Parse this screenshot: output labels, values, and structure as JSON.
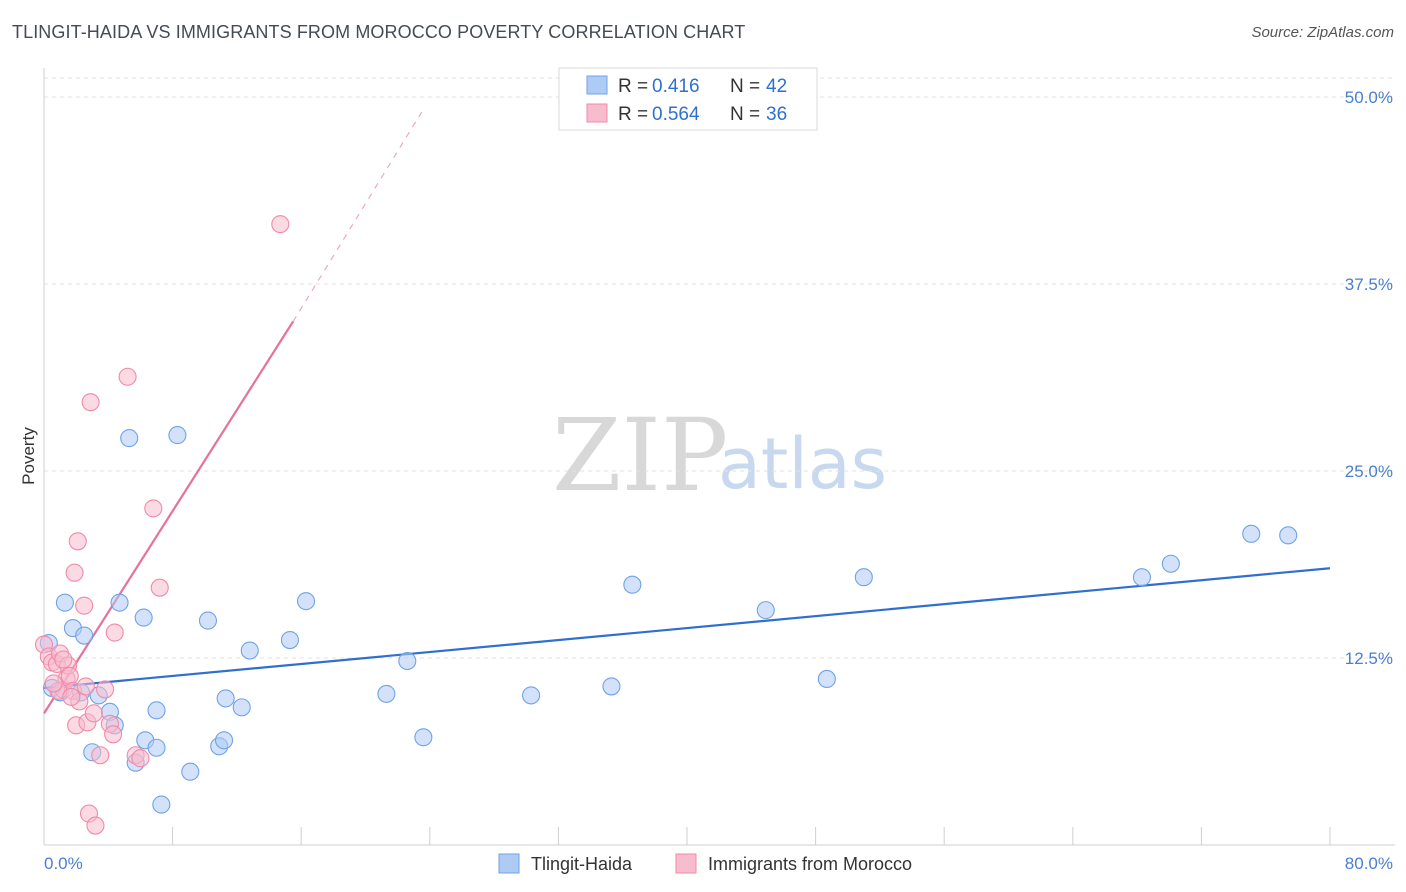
{
  "header": {
    "title": "TLINGIT-HAIDA VS IMMIGRANTS FROM MOROCCO POVERTY CORRELATION CHART",
    "source": "Source: ZipAtlas.com"
  },
  "watermark": {
    "zip": "ZIP",
    "atlas": "atlas"
  },
  "legend": {
    "items": [
      {
        "r_label": "R =",
        "r_value": "0.416",
        "n_label": "N =",
        "n_value": "42",
        "color": "#aecbf5"
      },
      {
        "r_label": "R =",
        "r_value": "0.564",
        "n_label": "N =",
        "n_value": "36",
        "color": "#f7bccd"
      }
    ]
  },
  "bottom_legend": [
    {
      "label": "Tlingit-Haida",
      "color": "#aecbf5"
    },
    {
      "label": "Immigrants from Morocco",
      "color": "#f7bccd"
    }
  ],
  "chart_data": {
    "type": "scatter",
    "title": "TLINGIT-HAIDA VS IMMIGRANTS FROM MOROCCO POVERTY CORRELATION CHART",
    "xlabel": "",
    "ylabel": "Poverty",
    "xlim": [
      0,
      80
    ],
    "ylim": [
      0,
      50
    ],
    "y_ticks": [
      12.5,
      25.0,
      37.5,
      50.0
    ],
    "y_tick_labels": [
      "12.5%",
      "25.0%",
      "37.5%",
      "50.0%"
    ],
    "x_tick_labels": [
      "0.0%",
      "80.0%"
    ],
    "series": [
      {
        "name": "Tlingit-Haida",
        "color": "#6ea3e6",
        "fill": "#aecbf5",
        "trend": {
          "x0": 0,
          "y0": 10.5,
          "x1": 80,
          "y1": 18.5,
          "color": "#2f6fd0"
        },
        "points": [
          [
            0.3,
            13.5
          ],
          [
            0.5,
            10.5
          ],
          [
            1.0,
            10.2
          ],
          [
            1.3,
            16.2
          ],
          [
            1.8,
            14.5
          ],
          [
            2.5,
            14.0
          ],
          [
            2.3,
            10.2
          ],
          [
            3.0,
            6.2
          ],
          [
            3.4,
            10.0
          ],
          [
            4.1,
            8.9
          ],
          [
            4.4,
            8.0
          ],
          [
            4.7,
            16.2
          ],
          [
            5.3,
            27.2
          ],
          [
            5.7,
            5.5
          ],
          [
            6.2,
            15.2
          ],
          [
            6.3,
            7.0
          ],
          [
            7.0,
            6.5
          ],
          [
            7.0,
            9.0
          ],
          [
            8.3,
            27.4
          ],
          [
            9.1,
            4.9
          ],
          [
            10.2,
            15.0
          ],
          [
            10.9,
            6.6
          ],
          [
            11.2,
            7.0
          ],
          [
            11.3,
            9.8
          ],
          [
            12.3,
            9.2
          ],
          [
            12.8,
            13.0
          ],
          [
            15.3,
            13.7
          ],
          [
            16.3,
            16.3
          ],
          [
            21.3,
            10.1
          ],
          [
            22.6,
            12.3
          ],
          [
            23.6,
            7.2
          ],
          [
            30.3,
            10.0
          ],
          [
            35.3,
            10.6
          ],
          [
            36.6,
            17.4
          ],
          [
            44.9,
            15.7
          ],
          [
            48.7,
            11.1
          ],
          [
            51.0,
            17.9
          ],
          [
            68.3,
            17.9
          ],
          [
            70.1,
            18.8
          ],
          [
            75.1,
            20.8
          ],
          [
            77.4,
            20.7
          ],
          [
            7.3,
            2.7
          ]
        ]
      },
      {
        "name": "Immigrants from Morocco",
        "color": "#f08aa9",
        "fill": "#f7bccd",
        "trend": {
          "x0": 0,
          "y0": 8.8,
          "x1": 15.5,
          "y1": 35.0,
          "color": "#e8719a"
        },
        "trend_dashed": {
          "x0": 15.5,
          "y0": 35.0,
          "x1": 23.5,
          "y1": 49.0,
          "color": "#f0a6bf"
        },
        "points": [
          [
            0.0,
            13.4
          ],
          [
            0.3,
            12.6
          ],
          [
            0.5,
            12.2
          ],
          [
            0.8,
            12.1
          ],
          [
            1.0,
            12.8
          ],
          [
            1.2,
            10.4
          ],
          [
            1.4,
            11.1
          ],
          [
            1.5,
            12.0
          ],
          [
            1.6,
            11.3
          ],
          [
            1.8,
            10.3
          ],
          [
            1.9,
            18.2
          ],
          [
            2.0,
            8.0
          ],
          [
            2.1,
            20.3
          ],
          [
            2.2,
            9.6
          ],
          [
            2.5,
            16.0
          ],
          [
            2.6,
            10.6
          ],
          [
            2.7,
            8.2
          ],
          [
            2.8,
            2.1
          ],
          [
            2.9,
            29.6
          ],
          [
            3.1,
            8.8
          ],
          [
            3.2,
            1.3
          ],
          [
            3.5,
            6.0
          ],
          [
            3.8,
            10.4
          ],
          [
            4.1,
            8.1
          ],
          [
            4.3,
            7.4
          ],
          [
            4.4,
            14.2
          ],
          [
            5.2,
            31.3
          ],
          [
            5.7,
            6.0
          ],
          [
            6.0,
            5.8
          ],
          [
            6.8,
            22.5
          ],
          [
            7.2,
            17.2
          ],
          [
            14.7,
            41.5
          ],
          [
            0.9,
            10.3
          ],
          [
            1.2,
            12.4
          ],
          [
            0.6,
            10.8
          ],
          [
            1.7,
            9.9
          ]
        ]
      }
    ]
  }
}
